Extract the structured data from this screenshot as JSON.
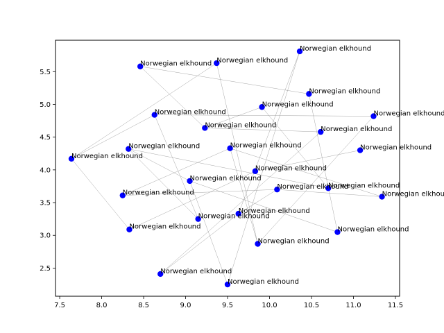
{
  "chart_data": {
    "type": "scatter",
    "title": "",
    "xlabel": "",
    "ylabel": "",
    "xlim": [
      7.45,
      11.55
    ],
    "ylim": [
      2.07,
      5.98
    ],
    "xticks": [
      7.5,
      8.0,
      8.5,
      9.0,
      9.5,
      10.0,
      10.5,
      11.0,
      11.5
    ],
    "yticks": [
      2.5,
      3.0,
      3.5,
      4.0,
      4.5,
      5.0,
      5.5
    ],
    "xtick_labels": [
      "7.5",
      "8.0",
      "8.5",
      "9.0",
      "9.5",
      "10.0",
      "10.5",
      "11.0",
      "11.5"
    ],
    "ytick_labels": [
      "2.5",
      "3.0",
      "3.5",
      "4.0",
      "4.5",
      "5.0",
      "5.5"
    ],
    "grid": false,
    "marker_color": "#0000ff",
    "edge_color": "#808080",
    "points": [
      {
        "x": 7.64,
        "y": 4.17,
        "label": "Norwegian elkhound"
      },
      {
        "x": 8.25,
        "y": 3.61,
        "label": "Norwegian elkhound"
      },
      {
        "x": 8.32,
        "y": 4.32,
        "label": "Norwegian elkhound"
      },
      {
        "x": 8.33,
        "y": 3.09,
        "label": "Norwegian elkhound"
      },
      {
        "x": 8.46,
        "y": 5.58,
        "label": "Norwegian elkhound"
      },
      {
        "x": 8.63,
        "y": 4.84,
        "label": "Norwegian elkhound"
      },
      {
        "x": 8.7,
        "y": 2.41,
        "label": "Norwegian elkhound"
      },
      {
        "x": 9.05,
        "y": 3.83,
        "label": "Norwegian elkhound"
      },
      {
        "x": 9.15,
        "y": 3.25,
        "label": "Norwegian elkhound"
      },
      {
        "x": 9.23,
        "y": 4.64,
        "label": "Norwegian elkhound"
      },
      {
        "x": 9.37,
        "y": 5.63,
        "label": "Norwegian elkhound"
      },
      {
        "x": 9.5,
        "y": 2.25,
        "label": "Norwegian elkhound"
      },
      {
        "x": 9.53,
        "y": 4.33,
        "label": "Norwegian elkhound"
      },
      {
        "x": 9.63,
        "y": 3.33,
        "label": "Norwegian elkhound"
      },
      {
        "x": 9.83,
        "y": 3.98,
        "label": "Norwegian elkhound"
      },
      {
        "x": 9.86,
        "y": 2.87,
        "label": "Norwegian elkhound"
      },
      {
        "x": 9.91,
        "y": 4.96,
        "label": "Norwegian elkhound"
      },
      {
        "x": 10.09,
        "y": 3.7,
        "label": "Norwegian elkhound"
      },
      {
        "x": 10.36,
        "y": 5.81,
        "label": "Norwegian elkhound"
      },
      {
        "x": 10.47,
        "y": 5.16,
        "label": "Norwegian elkhound"
      },
      {
        "x": 10.61,
        "y": 4.58,
        "label": "Norwegian elkhound"
      },
      {
        "x": 10.7,
        "y": 3.72,
        "label": "Norwegian elkhound"
      },
      {
        "x": 10.81,
        "y": 3.05,
        "label": "Norwegian elkhound"
      },
      {
        "x": 11.08,
        "y": 4.3,
        "label": "Norwegian elkhound"
      },
      {
        "x": 11.24,
        "y": 4.82,
        "label": "Norwegian elkhound"
      },
      {
        "x": 11.34,
        "y": 3.59,
        "label": "Norwegian elkhound"
      }
    ],
    "edges": [
      [
        0,
        3
      ],
      [
        0,
        5
      ],
      [
        0,
        10
      ],
      [
        1,
        12
      ],
      [
        1,
        17
      ],
      [
        2,
        7
      ],
      [
        2,
        8
      ],
      [
        2,
        21
      ],
      [
        3,
        14
      ],
      [
        4,
        9
      ],
      [
        4,
        19
      ],
      [
        5,
        8
      ],
      [
        5,
        24
      ],
      [
        6,
        13
      ],
      [
        6,
        20
      ],
      [
        7,
        11
      ],
      [
        7,
        22
      ],
      [
        9,
        20
      ],
      [
        9,
        16
      ],
      [
        10,
        15
      ],
      [
        11,
        18
      ],
      [
        12,
        25
      ],
      [
        12,
        15
      ],
      [
        13,
        18
      ],
      [
        13,
        17
      ],
      [
        14,
        23
      ],
      [
        15,
        24
      ],
      [
        16,
        21
      ],
      [
        17,
        25
      ],
      [
        19,
        22
      ]
    ]
  }
}
